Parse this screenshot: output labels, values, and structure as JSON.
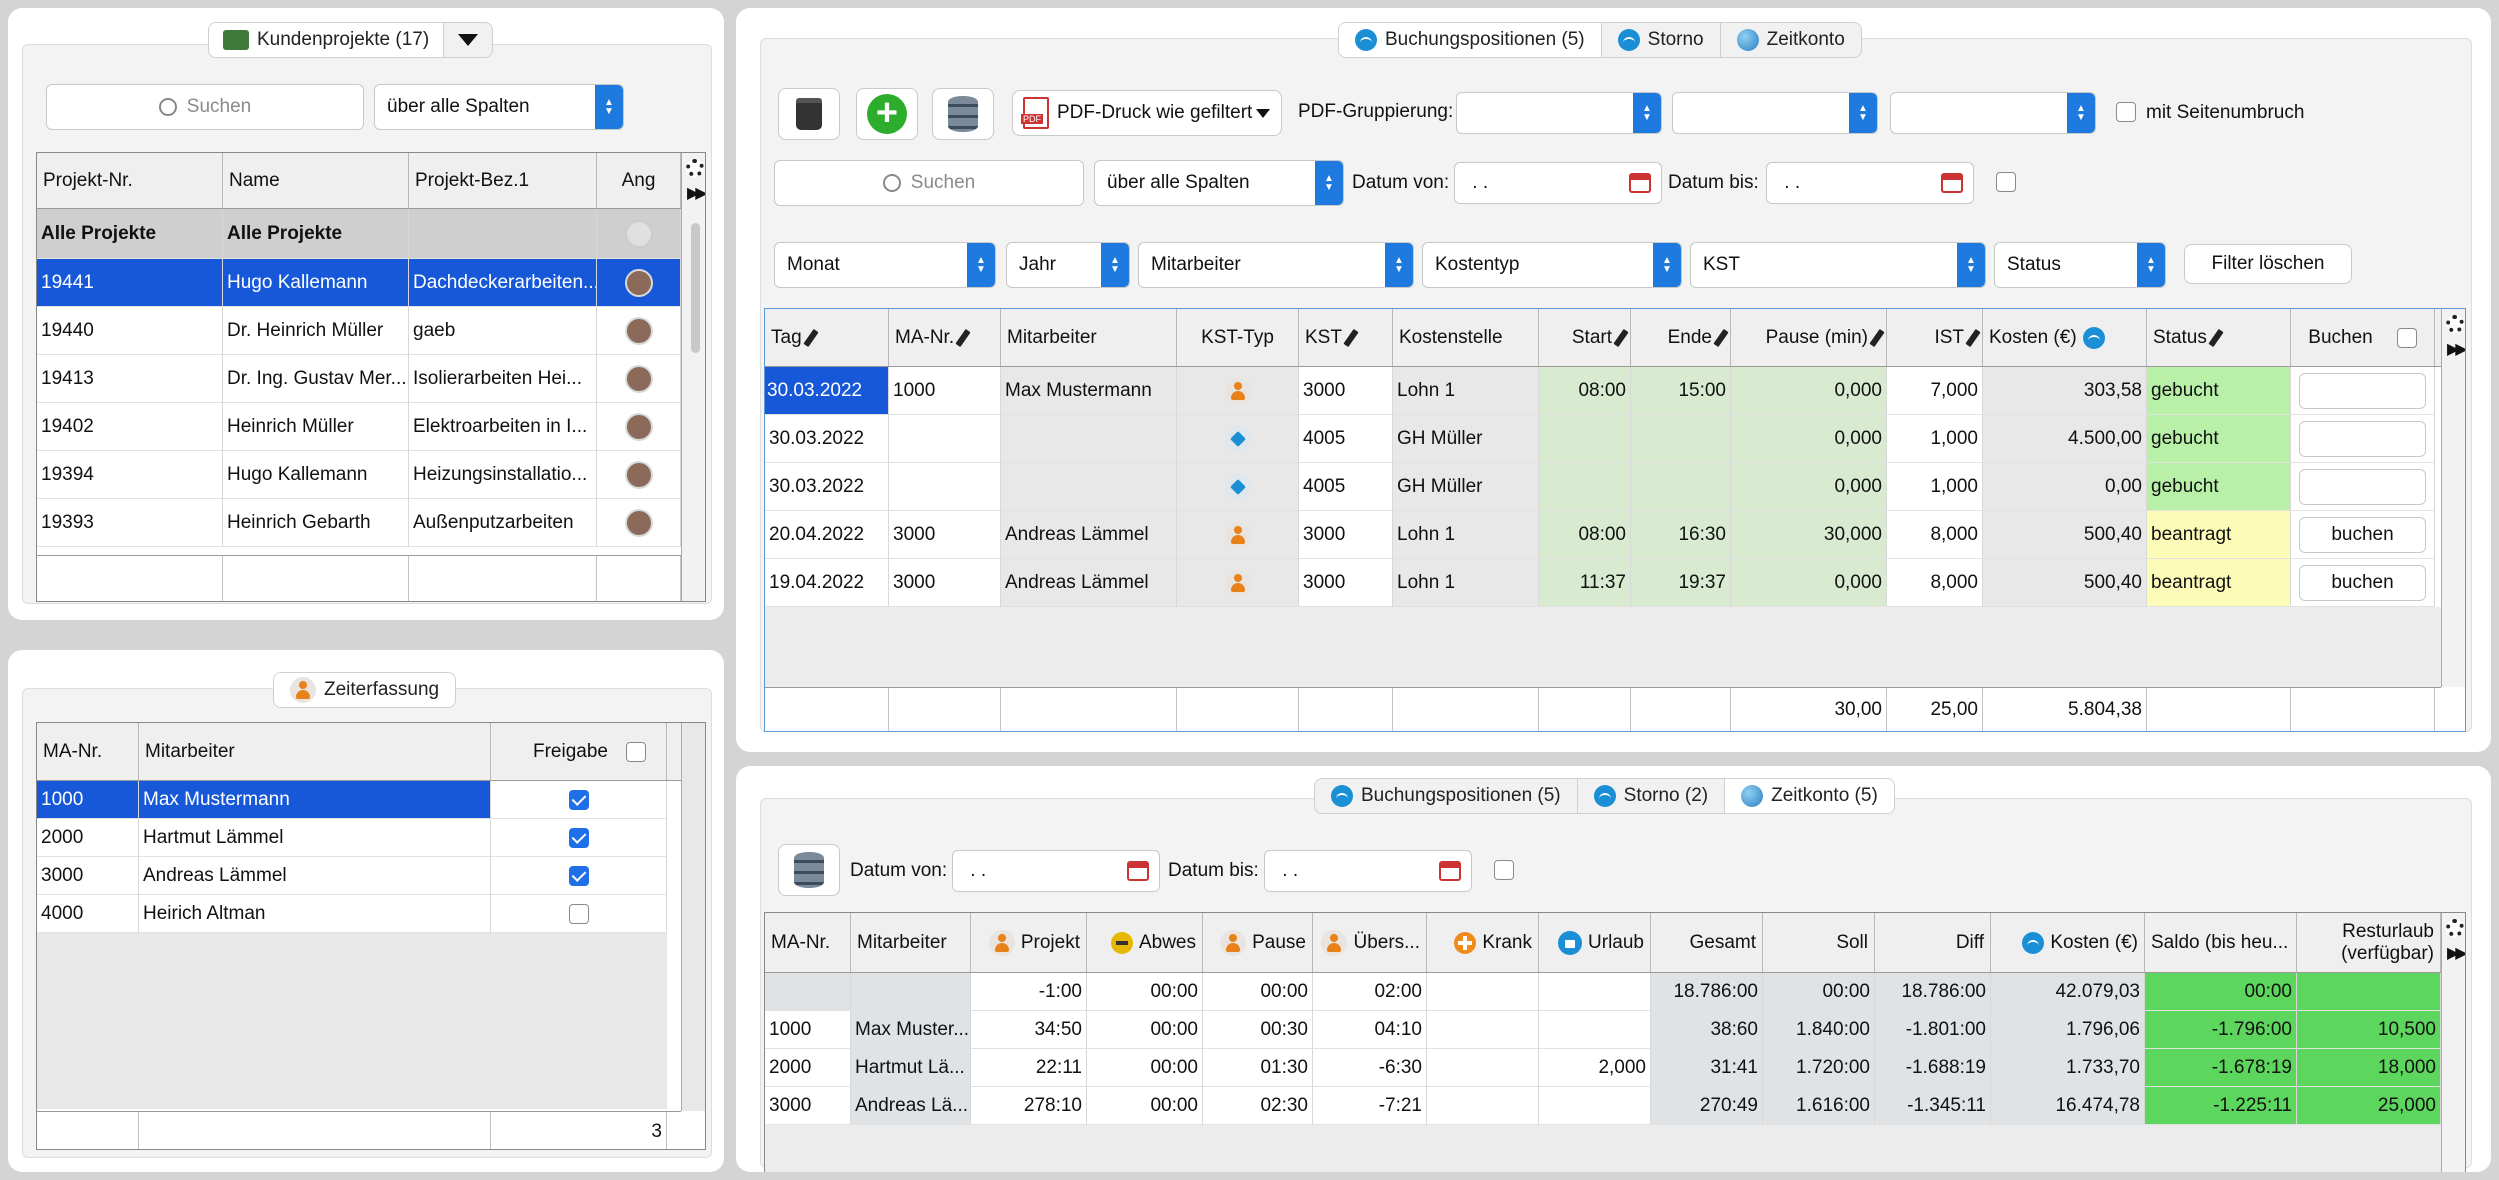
{
  "projects": {
    "tab_label": "Kundenprojekte (17)",
    "search_placeholder": "Suchen",
    "scope": "über alle Spalten",
    "columns": [
      "Projekt-Nr.",
      "Name",
      "Projekt-Bez.1",
      "Ang"
    ],
    "rows": [
      {
        "nr": "Alle Projekte",
        "name": "Alle Projekte",
        "bez": ""
      },
      {
        "nr": "19441",
        "name": "Hugo Kallemann",
        "bez": "Dachdeckerarbeiten..."
      },
      {
        "nr": "19440",
        "name": "Dr. Heinrich Müller",
        "bez": "gaeb"
      },
      {
        "nr": "19413",
        "name": "Dr. Ing. Gustav Mer...",
        "bez": "Isolierarbeiten  Hei..."
      },
      {
        "nr": "19402",
        "name": "Heinrich Müller",
        "bez": "Elektroarbeiten in I..."
      },
      {
        "nr": "19394",
        "name": "Hugo Kallemann",
        "bez": "Heizungsinstallatio..."
      },
      {
        "nr": "19393",
        "name": "Heinrich Gebarth",
        "bez": "Außenputzarbeiten"
      }
    ]
  },
  "time_entry": {
    "tab_label": "Zeiterfassung",
    "columns": [
      "MA-Nr.",
      "Mitarbeiter",
      "Freigabe"
    ],
    "rows": [
      {
        "nr": "1000",
        "name": "Max Mustermann",
        "freigabe": true
      },
      {
        "nr": "2000",
        "name": "Hartmut Lämmel",
        "freigabe": true
      },
      {
        "nr": "3000",
        "name": "Andreas Lämmel",
        "freigabe": true
      },
      {
        "nr": "4000",
        "name": "Heirich Altman",
        "freigabe": false
      }
    ],
    "footer_count": "3"
  },
  "bookings": {
    "tabs": [
      "Buchungspositionen (5)",
      "Storno",
      "Zeitkonto"
    ],
    "pdf_label": "PDF-Druck wie gefiltert",
    "grouping_label": "PDF-Gruppierung:",
    "page_break_label": "mit Seitenumbruch",
    "search_placeholder": "Suchen",
    "scope": "über alle Spalten",
    "date_from_label": "Datum von:",
    "date_to_label": "Datum bis:",
    "date_placeholder": " . .",
    "filters": [
      "Monat",
      "Jahr",
      "Mitarbeiter",
      "Kostentyp",
      "KST",
      "Status"
    ],
    "clear_filter": "Filter löschen",
    "columns": [
      "Tag",
      "MA-Nr.",
      "Mitarbeiter",
      "KST-Typ",
      "KST",
      "Kostenstelle",
      "Start",
      "Ende",
      "Pause (min)",
      "IST",
      "Kosten (€)",
      "Status",
      "Buchen"
    ],
    "rows": [
      {
        "tag": "30.03.2022",
        "nr": "1000",
        "name": "Max Mustermann",
        "typ": "person",
        "kst": "3000",
        "stelle": "Lohn 1",
        "start": "08:00",
        "ende": "15:00",
        "pause": "0,000",
        "ist": "7,000",
        "kosten": "303,58",
        "status": "gebucht",
        "buchen": ""
      },
      {
        "tag": "30.03.2022",
        "nr": "",
        "name": "",
        "typ": "cube",
        "kst": "4005",
        "stelle": "GH Müller",
        "start": "",
        "ende": "",
        "pause": "0,000",
        "ist": "1,000",
        "kosten": "4.500,00",
        "status": "gebucht",
        "buchen": ""
      },
      {
        "tag": "30.03.2022",
        "nr": "",
        "name": "",
        "typ": "cube",
        "kst": "4005",
        "stelle": "GH Müller",
        "start": "",
        "ende": "",
        "pause": "0,000",
        "ist": "1,000",
        "kosten": "0,00",
        "status": "gebucht",
        "buchen": ""
      },
      {
        "tag": "20.04.2022",
        "nr": "3000",
        "name": "Andreas Lämmel",
        "typ": "person",
        "kst": "3000",
        "stelle": "Lohn 1",
        "start": "08:00",
        "ende": "16:30",
        "pause": "30,000",
        "ist": "8,000",
        "kosten": "500,40",
        "status": "beantragt",
        "buchen": "buchen"
      },
      {
        "tag": "19.04.2022",
        "nr": "3000",
        "name": "Andreas Lämmel",
        "typ": "person",
        "kst": "3000",
        "stelle": "Lohn 1",
        "start": "11:37",
        "ende": "19:37",
        "pause": "0,000",
        "ist": "8,000",
        "kosten": "500,40",
        "status": "beantragt",
        "buchen": "buchen"
      }
    ],
    "totals": {
      "pause": "30,00",
      "ist": "25,00",
      "kosten": "5.804,38"
    }
  },
  "account": {
    "tabs": [
      "Buchungspositionen (5)",
      "Storno (2)",
      "Zeitkonto (5)"
    ],
    "date_from_label": "Datum von:",
    "date_to_label": "Datum bis:",
    "date_placeholder": " . .",
    "columns": [
      "MA-Nr.",
      "Mitarbeiter",
      "Projekt",
      "Abwes",
      "Pause",
      "Übers...",
      "Krank",
      "Urlaub",
      "Gesamt",
      "Soll",
      "Diff",
      "Kosten (€)",
      "Saldo (bis heu...",
      "Resturlaub (verfügbar)"
    ],
    "rows": [
      {
        "nr": "",
        "name": "",
        "projekt": "-1:00",
        "abwes": "00:00",
        "pause": "00:00",
        "ueber": "02:00",
        "krank": "",
        "urlaub": "",
        "gesamt": "18.786:00",
        "soll": "00:00",
        "diff": "18.786:00",
        "kosten": "42.079,03",
        "saldo": "00:00",
        "rest": ""
      },
      {
        "nr": "1000",
        "name": "Max Muster...",
        "projekt": "34:50",
        "abwes": "00:00",
        "pause": "00:30",
        "ueber": "04:10",
        "krank": "",
        "urlaub": "",
        "gesamt": "38:60",
        "soll": "1.840:00",
        "diff": "-1.801:00",
        "kosten": "1.796,06",
        "saldo": "-1.796:00",
        "rest": "10,500"
      },
      {
        "nr": "2000",
        "name": "Hartmut Lä...",
        "projekt": "22:11",
        "abwes": "00:00",
        "pause": "01:30",
        "ueber": "-6:30",
        "krank": "",
        "urlaub": "2,000",
        "gesamt": "31:41",
        "soll": "1.720:00",
        "diff": "-1.688:19",
        "kosten": "1.733,70",
        "saldo": "-1.678:19",
        "rest": "18,000"
      },
      {
        "nr": "3000",
        "name": "Andreas Lä...",
        "projekt": "278:10",
        "abwes": "00:00",
        "pause": "02:30",
        "ueber": "-7:21",
        "krank": "",
        "urlaub": "",
        "gesamt": "270:49",
        "soll": "1.616:00",
        "diff": "-1.345:11",
        "kosten": "16.474,78",
        "saldo": "-1.225:11",
        "rest": "25,000"
      }
    ]
  },
  "colors": {
    "selection": "#1658d8",
    "accent": "#1f7ae0",
    "booked": "#b8f0a8",
    "requested": "#fdfbb8",
    "saldo": "#5cd65c"
  }
}
